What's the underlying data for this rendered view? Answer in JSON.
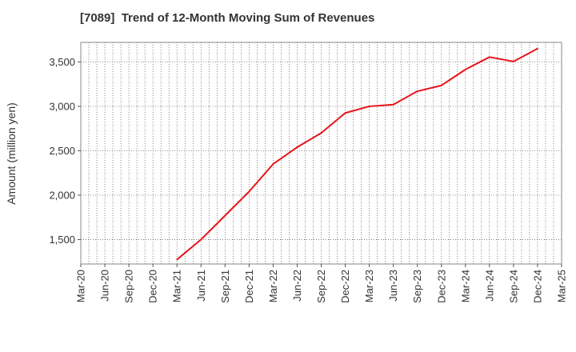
{
  "chart_data": {
    "type": "line",
    "title": "[7089]  Trend of 12-Month Moving Sum of Revenues",
    "xlabel": "",
    "ylabel": "Amount (million yen)",
    "x_ticks": [
      "Mar-20",
      "Jun-20",
      "Sep-20",
      "Dec-20",
      "Mar-21",
      "Jun-21",
      "Sep-21",
      "Dec-21",
      "Mar-22",
      "Jun-22",
      "Sep-22",
      "Dec-22",
      "Mar-23",
      "Jun-23",
      "Sep-23",
      "Dec-23",
      "Mar-24",
      "Jun-24",
      "Sep-24",
      "Dec-24",
      "Mar-25"
    ],
    "y_ticks": [
      1500,
      2000,
      2500,
      3000,
      3500
    ],
    "y_tick_labels": [
      "1,500",
      "2,000",
      "2,500",
      "3,000",
      "3,500"
    ],
    "ylim": [
      1225,
      3720
    ],
    "grid": true,
    "series": [
      {
        "color": "#e8141b",
        "x": [
          "Mar-21",
          "Jun-21",
          "Sep-21",
          "Dec-21",
          "Mar-22",
          "Jun-22",
          "Sep-22",
          "Dec-22",
          "Mar-23",
          "Jun-23",
          "Sep-23",
          "Dec-23",
          "Mar-24",
          "Jun-24",
          "Sep-24",
          "Dec-24"
        ],
        "values": [
          1275,
          1500,
          1770,
          2040,
          2350,
          2540,
          2700,
          2925,
          3000,
          3020,
          3170,
          3235,
          3415,
          3555,
          3505,
          3650
        ]
      }
    ]
  }
}
